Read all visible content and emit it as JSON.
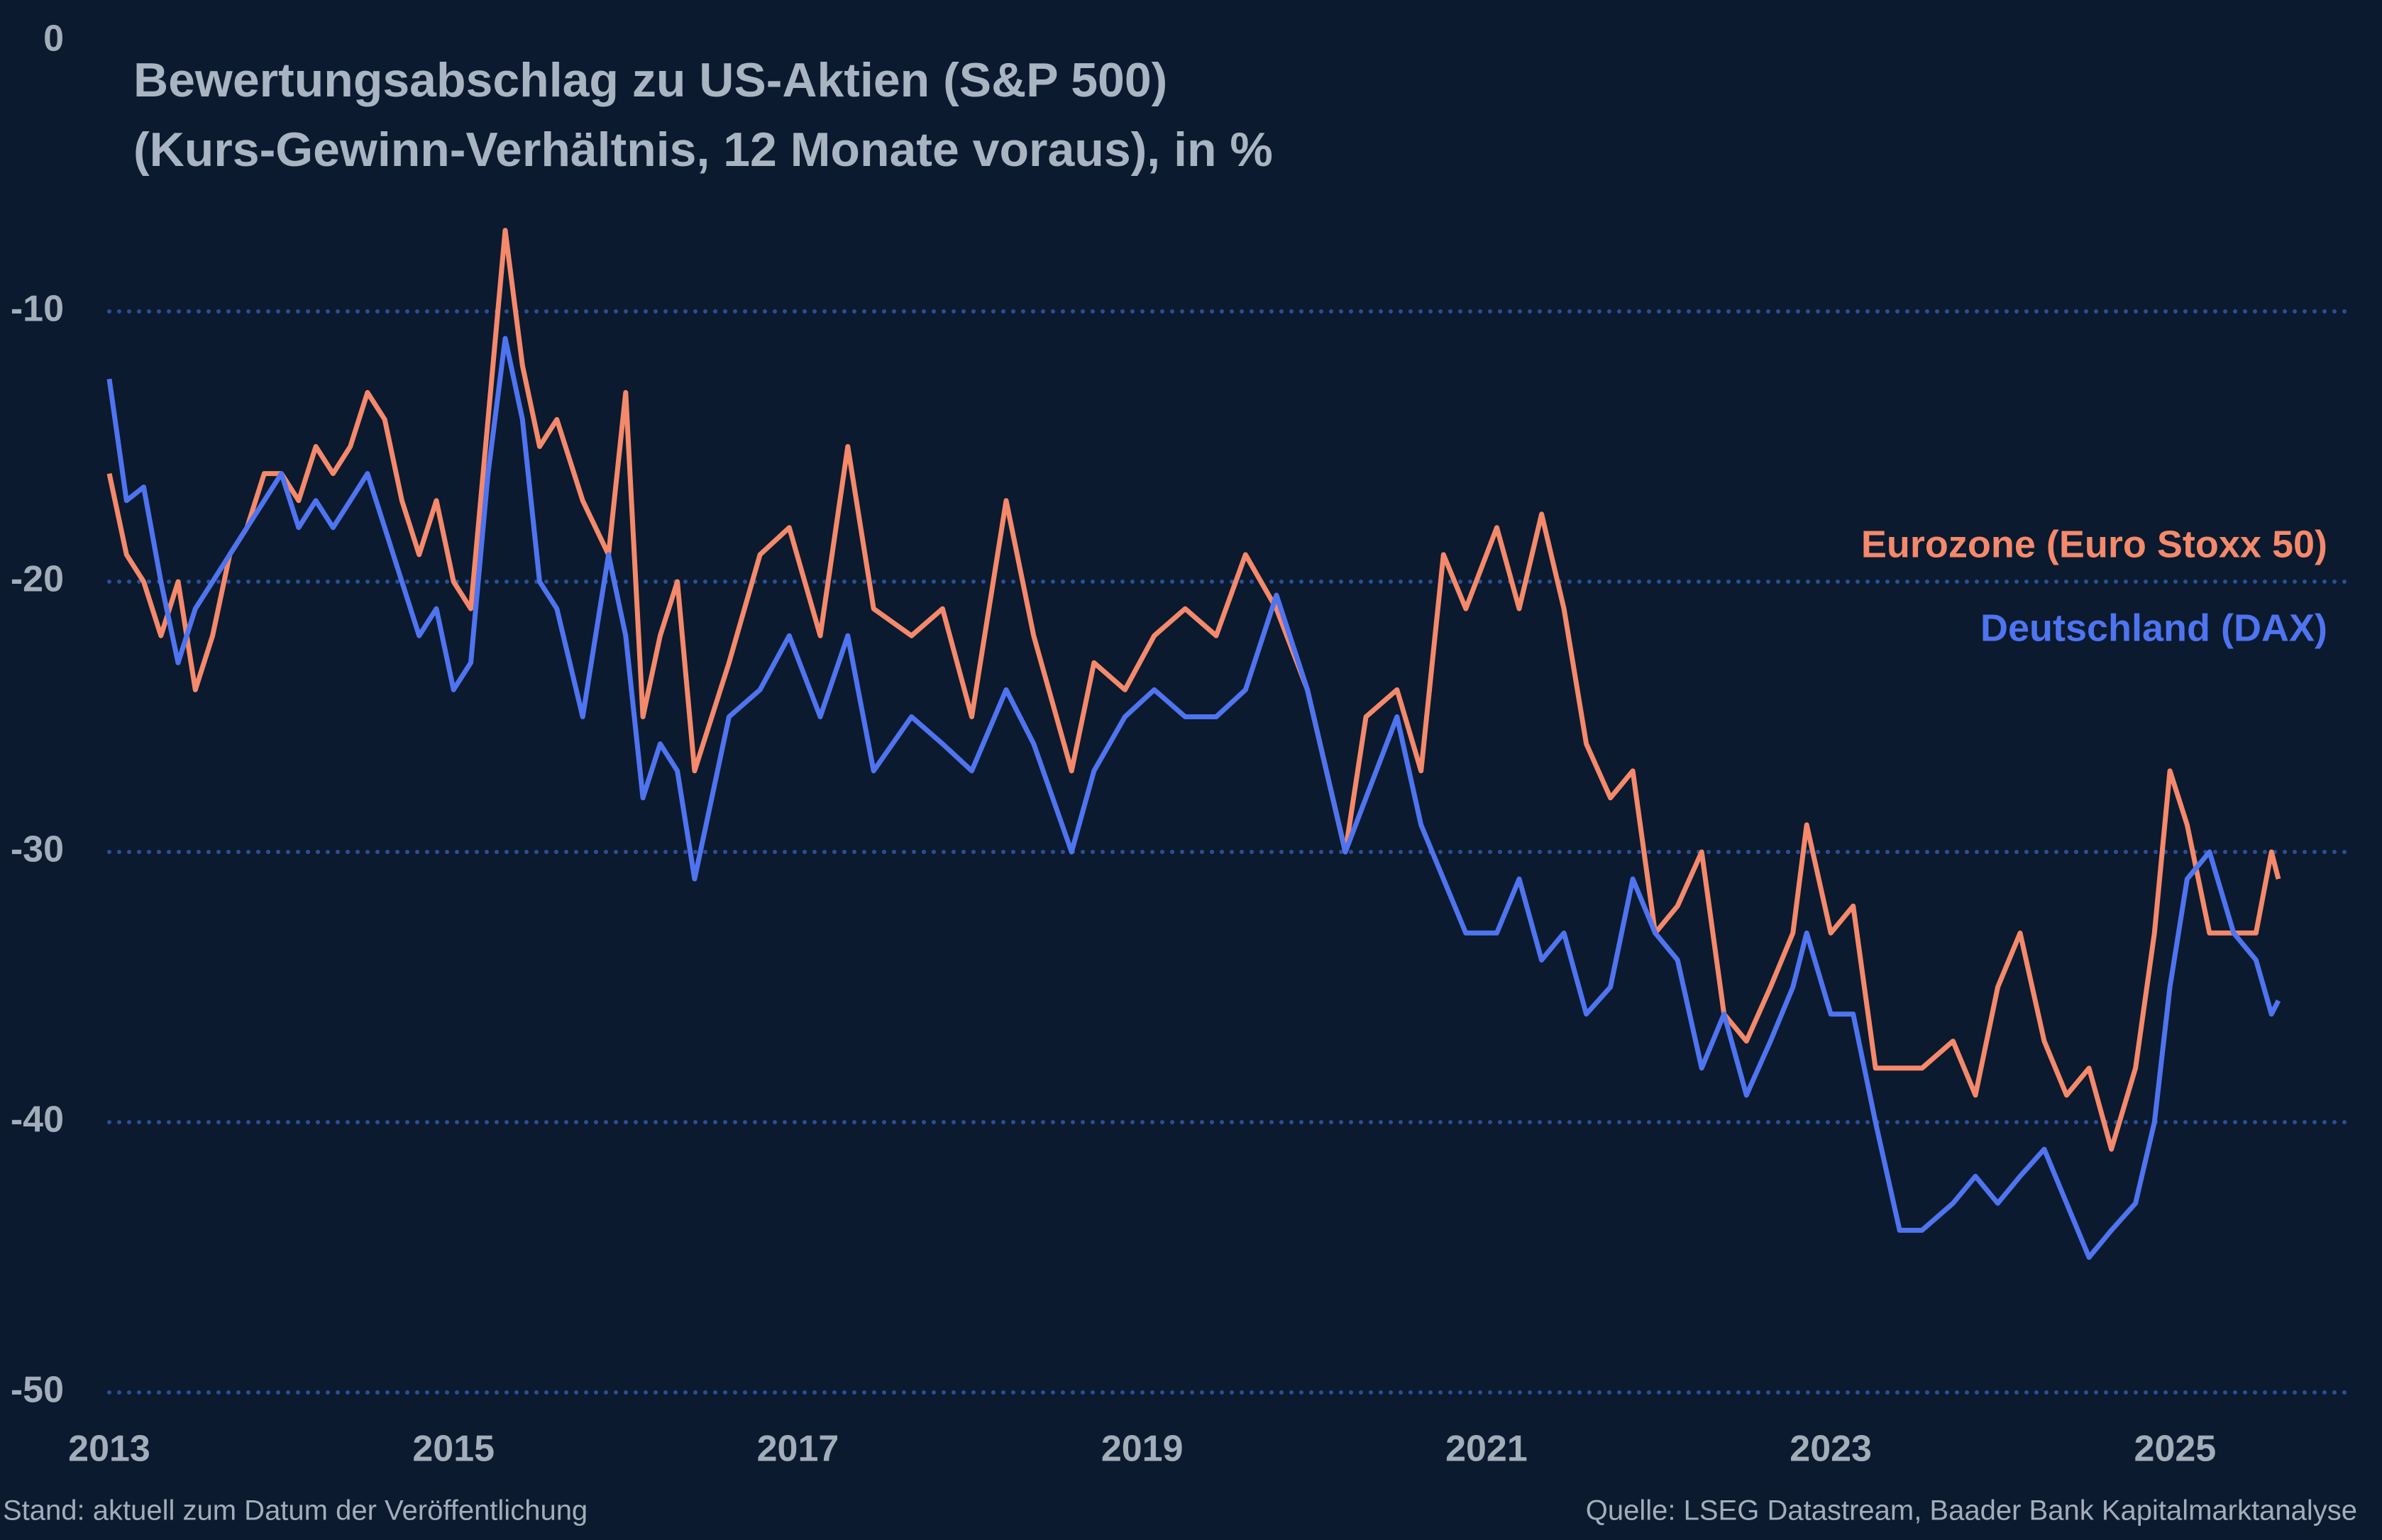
{
  "chart_data": {
    "type": "line",
    "title": "Bewertungsabschlag zu US-Aktien (S&P 500)",
    "subtitle": "(Kurs-Gewinn-Verhältnis, 12 Monate voraus), in %",
    "note": "Stand: aktuell zum Datum der Veröffentlichung",
    "source": "Quelle: LSEG Datastream, Baader Bank Kapitalmarktanalyse",
    "x": [
      2013.0,
      2013.1,
      2013.2,
      2013.3,
      2013.4,
      2013.5,
      2013.6,
      2013.7,
      2013.8,
      2013.9,
      2014.0,
      2014.1,
      2014.2,
      2014.3,
      2014.4,
      2014.5,
      2014.6,
      2014.7,
      2014.8,
      2014.9,
      2015.0,
      2015.1,
      2015.2,
      2015.3,
      2015.4,
      2015.5,
      2015.6,
      2015.75,
      2015.9,
      2016.0,
      2016.1,
      2016.2,
      2016.3,
      2016.4,
      2016.6,
      2016.78,
      2016.95,
      2017.13,
      2017.29,
      2017.44,
      2017.66,
      2017.84,
      2018.01,
      2018.21,
      2018.37,
      2018.59,
      2018.72,
      2018.9,
      2019.07,
      2019.25,
      2019.43,
      2019.6,
      2019.78,
      2019.96,
      2020.18,
      2020.3,
      2020.48,
      2020.62,
      2020.75,
      2020.88,
      2021.06,
      2021.19,
      2021.32,
      2021.45,
      2021.58,
      2021.72,
      2021.85,
      2021.98,
      2022.11,
      2022.25,
      2022.38,
      2022.51,
      2022.65,
      2022.78,
      2022.86,
      2023.0,
      2023.13,
      2023.26,
      2023.4,
      2023.53,
      2023.71,
      2023.84,
      2023.97,
      2024.1,
      2024.24,
      2024.37,
      2024.5,
      2024.63,
      2024.77,
      2024.88,
      2024.97,
      2025.07,
      2025.2,
      2025.34,
      2025.47,
      2025.56,
      2025.6
    ],
    "series": [
      {
        "name": "Eurozone (Euro Stoxx 50)",
        "color": "#f4896b",
        "values": [
          -16,
          -19,
          -20,
          -22,
          -20,
          -24,
          -22,
          -19,
          -18,
          -16,
          -16,
          -17,
          -15,
          -16,
          -15,
          -13,
          -14,
          -17,
          -19,
          -17,
          -20,
          -21,
          -14,
          -7,
          -12,
          -15,
          -14,
          -17,
          -19,
          -13,
          -25,
          -22,
          -20,
          -27,
          -23,
          -19,
          -18,
          -22,
          -15,
          -21,
          -22,
          -21,
          -25,
          -17,
          -22,
          -27,
          -23,
          -24,
          -22,
          -21,
          -22,
          -19,
          -21,
          -24,
          -30,
          -25,
          -24,
          -27,
          -19,
          -21,
          -18,
          -21,
          -17.5,
          -21,
          -26,
          -28,
          -27,
          -33,
          -32,
          -30,
          -36,
          -37,
          -35,
          -33,
          -29,
          -33,
          -32,
          -38,
          -38,
          -38,
          -37,
          -39,
          -35,
          -33,
          -37,
          -39,
          -38,
          -41,
          -38,
          -33,
          -27,
          -29,
          -33,
          -33,
          -33,
          -30,
          -31
        ]
      },
      {
        "name": "Deutschland (DAX)",
        "color": "#4f74f0",
        "values": [
          -12.5,
          -17,
          -16.5,
          -20,
          -23,
          -21,
          -20,
          -19,
          -18,
          -17,
          -16,
          -18,
          -17,
          -18,
          -17,
          -16,
          -18,
          -20,
          -22,
          -21,
          -24,
          -23,
          -16,
          -11,
          -14,
          -20,
          -21,
          -25,
          -19,
          -22,
          -28,
          -26,
          -27,
          -31,
          -25,
          -24,
          -22,
          -25,
          -22,
          -27,
          -25,
          -26,
          -27,
          -24,
          -26,
          -30,
          -27,
          -25,
          -24,
          -25,
          -25,
          -24,
          -20.5,
          -24,
          -30,
          -28,
          -25,
          -29,
          -31,
          -33,
          -33,
          -31,
          -34,
          -33,
          -36,
          -35,
          -31,
          -33,
          -34,
          -38,
          -36,
          -39,
          -37,
          -35,
          -33,
          -36,
          -36,
          -40,
          -44,
          -44,
          -43,
          -42,
          -43,
          -42,
          -41,
          -43,
          -45,
          -44,
          -43,
          -40,
          -35,
          -31,
          -30,
          -33,
          -34,
          -36,
          -35.5
        ]
      }
    ],
    "xlim": [
      2013,
      2026
    ],
    "xticks": [
      2013,
      2015,
      2017,
      2019,
      2021,
      2023,
      2025
    ],
    "ylim": [
      -50,
      0
    ],
    "yticks": [
      0,
      -10,
      -20,
      -30,
      -40,
      -50
    ],
    "grid": true,
    "legend": "right"
  }
}
